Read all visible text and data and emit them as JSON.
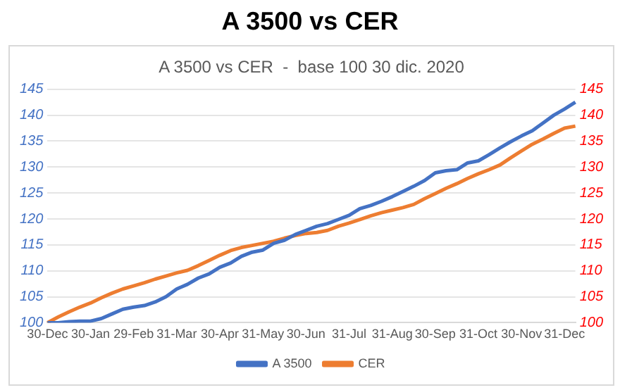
{
  "chart_data": {
    "type": "line",
    "title": "A 3500 vs CER",
    "subtitle": "A 3500 vs CER  -  base 100 30 dic. 2020",
    "categories": [
      "30-Dec",
      null,
      null,
      null,
      "30-Jan",
      null,
      null,
      null,
      "29-Feb",
      null,
      null,
      null,
      "31-Mar",
      null,
      null,
      null,
      "30-Apr",
      null,
      null,
      null,
      "31-May",
      null,
      null,
      null,
      "30-Jun",
      null,
      null,
      null,
      "31-Jul",
      null,
      null,
      null,
      "31-Aug",
      null,
      null,
      null,
      "30-Sep",
      null,
      null,
      null,
      "31-Oct",
      null,
      null,
      null,
      "30-Nov",
      null,
      null,
      null,
      "31-Dec",
      null
    ],
    "series": [
      {
        "name": "A 3500",
        "color": "#4472c4",
        "values": [
          100,
          100,
          100.2,
          100.3,
          100.3,
          100.8,
          101.7,
          102.6,
          103,
          103.3,
          104,
          105,
          106.5,
          107.4,
          108.6,
          109.4,
          110.7,
          111.5,
          112.8,
          113.6,
          114,
          115.3,
          115.9,
          117,
          117.8,
          118.6,
          119.1,
          119.9,
          120.7,
          122,
          122.6,
          123.4,
          124.3,
          125.3,
          126.3,
          127.4,
          128.9,
          129.3,
          129.5,
          130.8,
          131.2,
          132.4,
          133.7,
          134.9,
          136,
          137,
          138.5,
          140,
          141.2,
          142.5
        ]
      },
      {
        "name": "CER",
        "color": "#ed7d31",
        "values": [
          100,
          101.1,
          102.1,
          103,
          103.8,
          104.8,
          105.7,
          106.5,
          107.1,
          107.7,
          108.4,
          109,
          109.6,
          110.1,
          111,
          112,
          113,
          113.9,
          114.5,
          114.9,
          115.3,
          115.7,
          116.3,
          116.8,
          117.2,
          117.4,
          117.8,
          118.6,
          119.2,
          119.9,
          120.6,
          121.2,
          121.7,
          122.2,
          122.8,
          123.9,
          124.9,
          125.9,
          126.8,
          127.8,
          128.7,
          129.5,
          130.4,
          131.8,
          133.1,
          134.4,
          135.4,
          136.5,
          137.5,
          137.9
        ]
      }
    ],
    "ylim": [
      100,
      145
    ],
    "yticks": [
      100,
      105,
      110,
      115,
      120,
      125,
      130,
      135,
      140,
      145
    ],
    "y2lim": [
      100,
      145
    ],
    "y2ticks": [
      100,
      105,
      110,
      115,
      120,
      125,
      130,
      135,
      140,
      145
    ],
    "grid": "y",
    "legend": "bottom",
    "marker": "none",
    "line_style": "solid"
  }
}
